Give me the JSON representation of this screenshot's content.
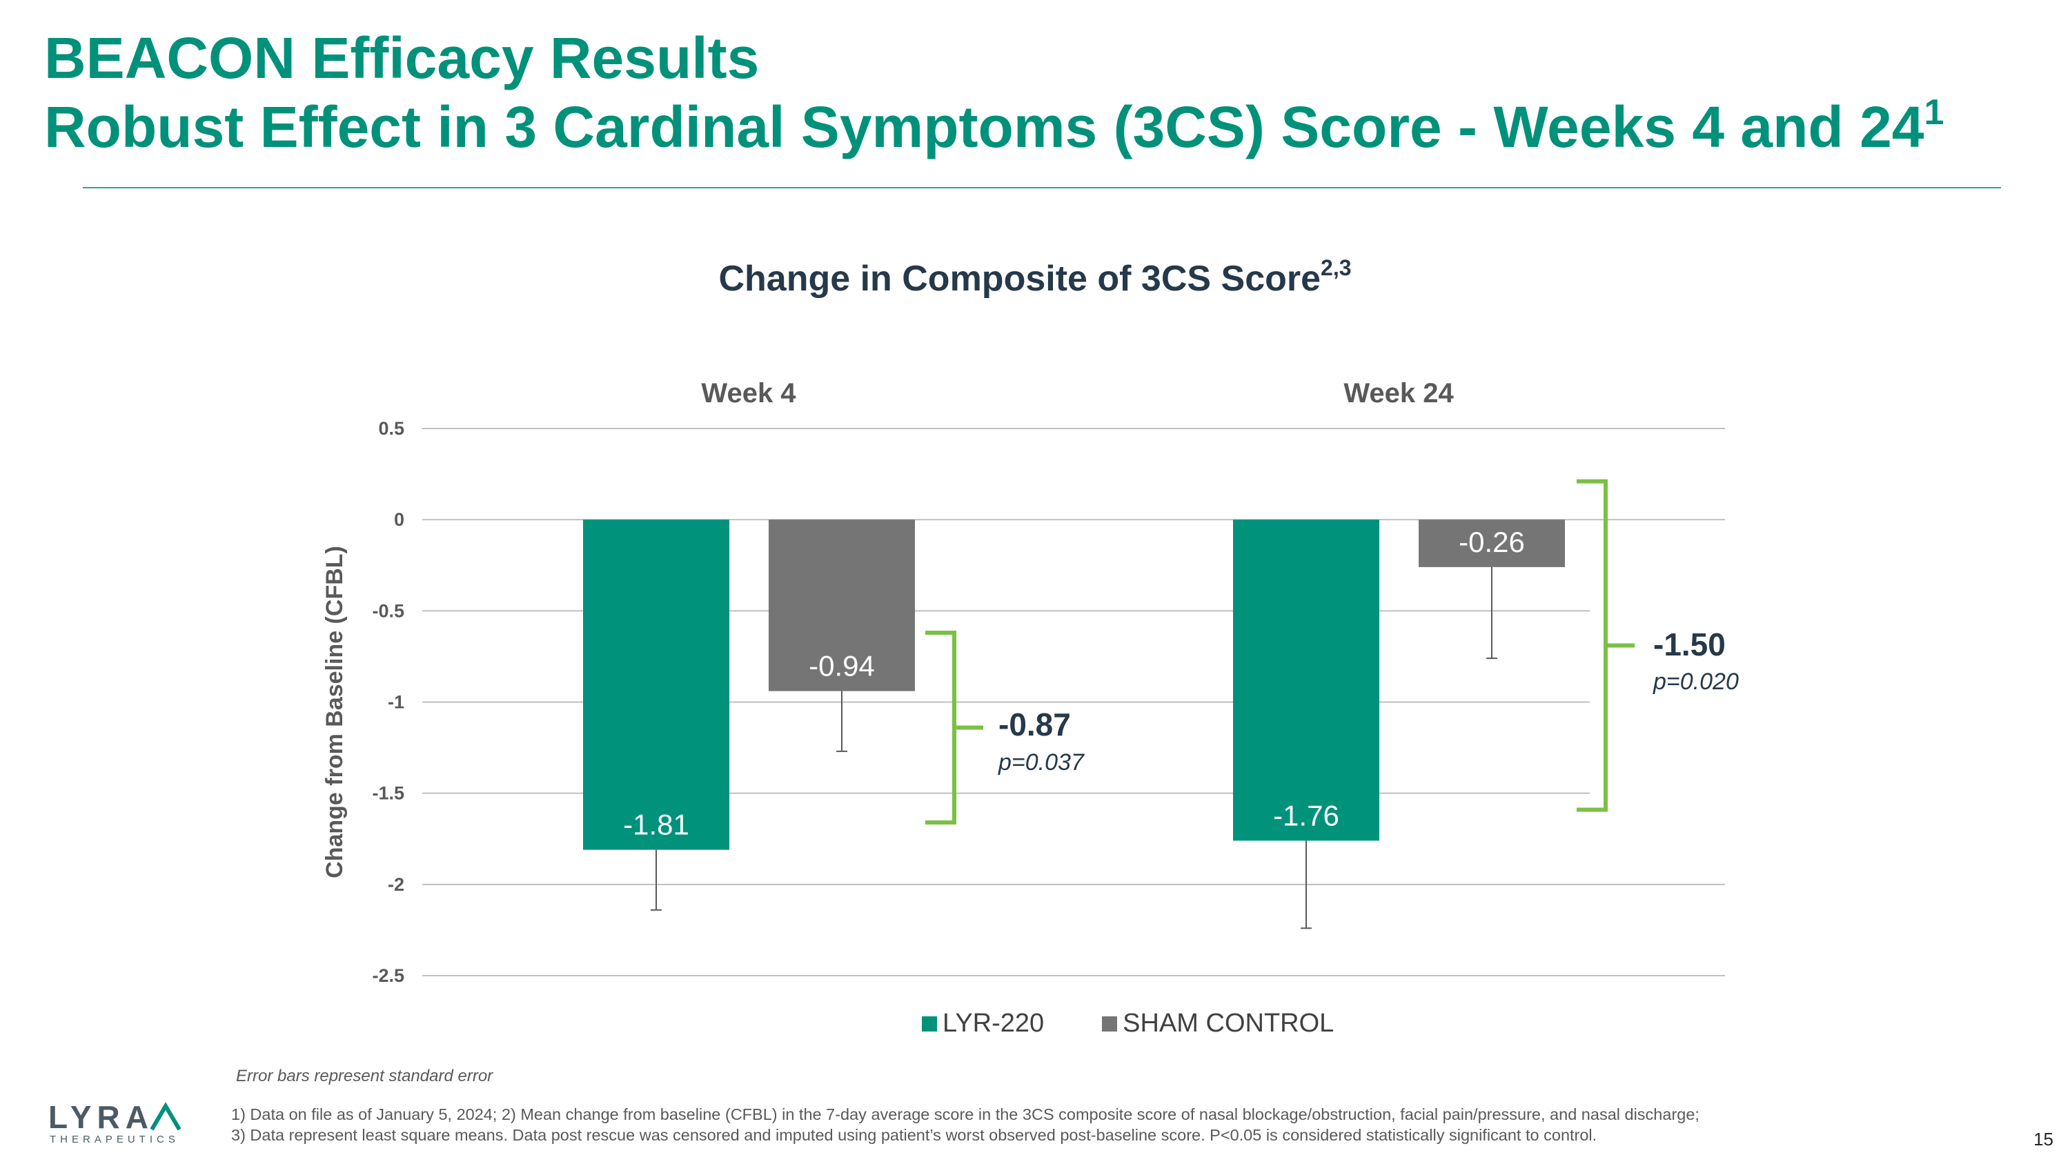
{
  "slide": {
    "title_line1": "BEACON Efficacy Results",
    "title_line2": "Robust Effect in 3 Cardinal Symptoms (3CS) Score - Weeks 4 and 24",
    "title_line2_sup": "1",
    "chart_title": "Change in Composite of 3CS Score",
    "chart_title_sup": "2,3",
    "error_note": "Error bars represent standard error",
    "footnote": "1) Data on file as of January 5, 2024; 2) Mean change from baseline (CFBL) in the 7-day average score in the 3CS composite score of nasal blockage/obstruction, facial pain/pressure, and nasal discharge; 3) Data represent least square means. Data post rescue was censored and imputed using patient’s worst observed post-baseline score. P<0.05 is considered statistically significant to control.",
    "page_number": "15",
    "logo_text": "LYRA",
    "logo_tagline": "THERAPEUTICS"
  },
  "colors": {
    "brand": "#00917a",
    "lyr": "#00927b",
    "sham": "#757575",
    "bracket": "#7ac143",
    "grid": "#bfbfbf",
    "text_dark": "#26394a"
  },
  "chart_data": {
    "type": "bar",
    "title": "Change in Composite of 3CS Score",
    "ylabel": "Change from Baseline (CFBL)",
    "xlabel": "",
    "ylim": [
      -2.5,
      0.5
    ],
    "yticks": [
      0.5,
      0,
      -0.5,
      -1,
      -1.5,
      -2,
      -2.5
    ],
    "ytick_labels": [
      "0.5",
      "0",
      "-0.5",
      "-1",
      "-1.5",
      "-2",
      "-2.5"
    ],
    "categories": [
      "Week 4",
      "Week 24"
    ],
    "series": [
      {
        "name": "LYR-220",
        "values": [
          -1.81,
          -1.76
        ],
        "labels": [
          "-1.81",
          "-1.76"
        ],
        "error_low": [
          -2.14,
          -2.24
        ]
      },
      {
        "name": "SHAM CONTROL",
        "values": [
          -0.94,
          -0.26
        ],
        "labels": [
          "-0.94",
          "-0.26"
        ],
        "error_low": [
          -1.27,
          -0.76
        ]
      }
    ],
    "comparisons": [
      {
        "category": "Week 4",
        "difference": "-0.87",
        "p_value": "p=0.037"
      },
      {
        "category": "Week 24",
        "difference": "-1.50",
        "p_value": "p=0.020"
      }
    ],
    "legend_position": "bottom",
    "grid": true
  }
}
